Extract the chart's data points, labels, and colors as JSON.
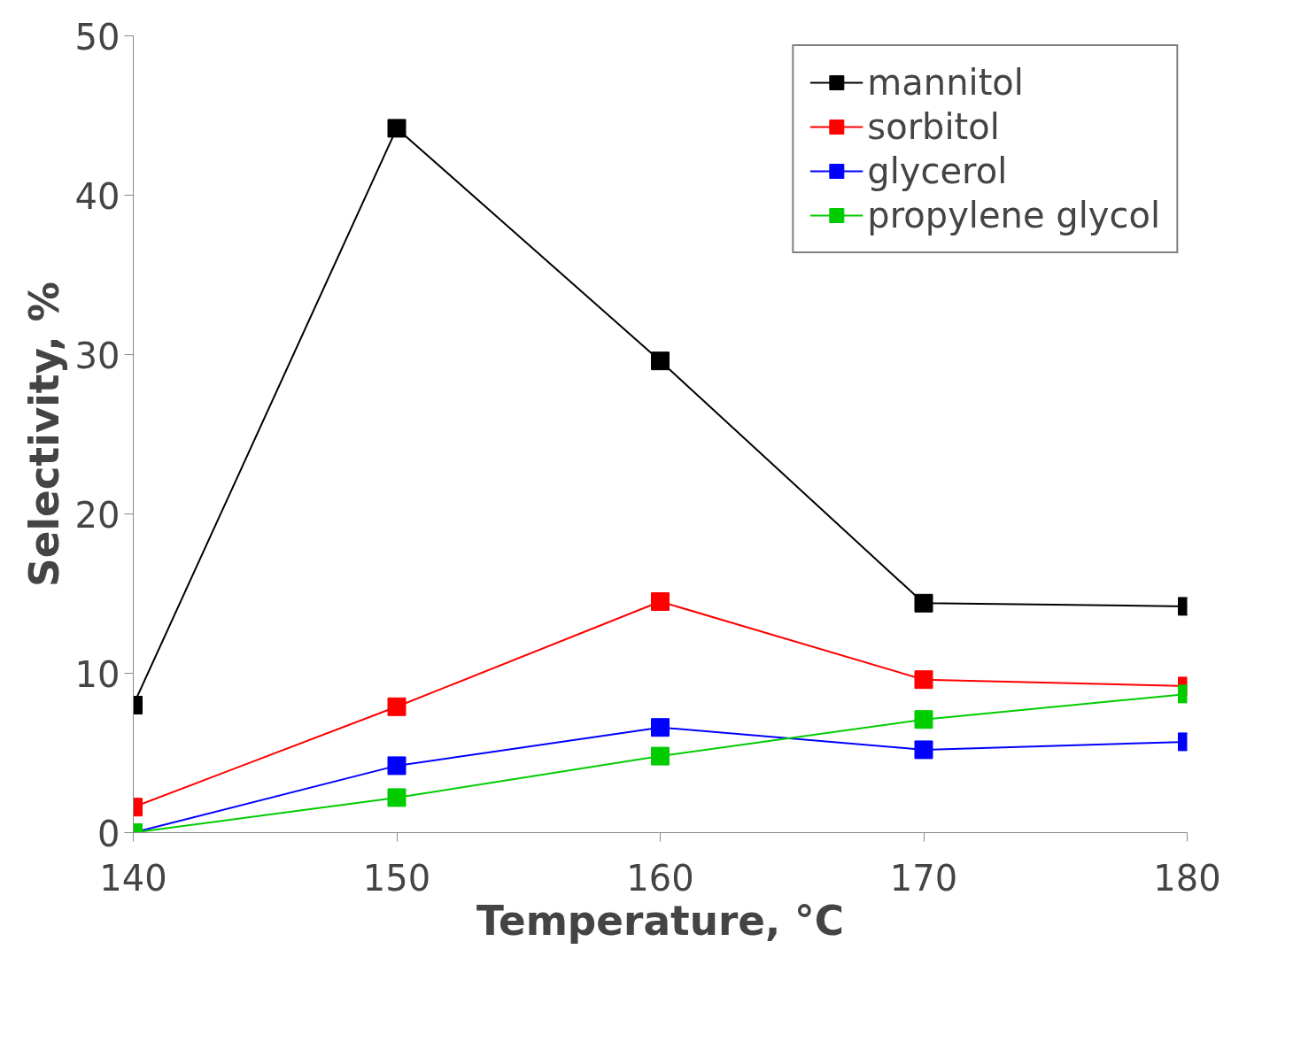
{
  "chart_data": {
    "type": "line",
    "xlabel": "Temperature, °C",
    "ylabel": "Selectivity, %",
    "x": [
      140,
      150,
      160,
      170,
      180
    ],
    "series": [
      {
        "name": "mannitol",
        "color": "#000000",
        "values": [
          8.0,
          44.2,
          29.6,
          14.4,
          14.2
        ]
      },
      {
        "name": "sorbitol",
        "color": "#ff0000",
        "values": [
          1.6,
          7.9,
          14.5,
          9.6,
          9.2
        ]
      },
      {
        "name": "glycerol",
        "color": "#0000ff",
        "values": [
          0,
          4.2,
          6.6,
          5.2,
          5.7
        ]
      },
      {
        "name": "propylene glycol",
        "color": "#00cc00",
        "values": [
          0,
          2.2,
          4.8,
          7.1,
          8.7
        ]
      }
    ],
    "xlim": [
      140,
      180
    ],
    "xticks": [
      140,
      150,
      160,
      170,
      180
    ],
    "ylim": [
      0,
      50
    ],
    "yticks": [
      0,
      10,
      20,
      30,
      40,
      50
    ],
    "grid": false,
    "legend": "top right",
    "marker": "square",
    "line_style": "solid"
  }
}
